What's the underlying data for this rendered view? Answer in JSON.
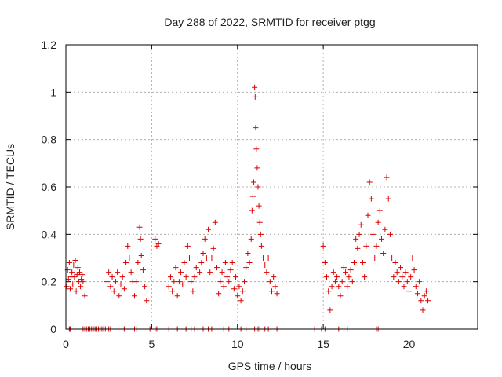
{
  "chart_data": {
    "type": "scatter",
    "title": "Day 288 of 2022, SRMTID for receiver ptgg",
    "xlabel": "GPS time / hours",
    "ylabel": "SRMTID / TECUs",
    "xlim": [
      0,
      24
    ],
    "ylim": [
      0,
      1.2
    ],
    "xticks": [
      0,
      5,
      10,
      15,
      20
    ],
    "xtick_labels": [
      "0",
      "5",
      "10",
      "15",
      "20"
    ],
    "yticks": [
      0,
      0.2,
      0.4,
      0.6,
      0.8,
      1.0,
      1.2
    ],
    "ytick_labels": [
      "0",
      "0.2",
      "0.4",
      "0.6",
      "0.8",
      "1",
      "1.2"
    ],
    "grid": true,
    "legend": "none",
    "marker": "plus",
    "series": [
      {
        "name": "SRMTID",
        "color": "#dd0000",
        "points": [
          [
            0.05,
            0.18
          ],
          [
            0.1,
            0.25
          ],
          [
            0.15,
            0.21
          ],
          [
            0.2,
            0.28
          ],
          [
            0.25,
            0.17
          ],
          [
            0.3,
            0.22
          ],
          [
            0.35,
            0.24
          ],
          [
            0.4,
            0.19
          ],
          [
            0.45,
            0.27
          ],
          [
            0.5,
            0.22
          ],
          [
            0.55,
            0.29
          ],
          [
            0.6,
            0.16
          ],
          [
            0.65,
            0.23
          ],
          [
            0.7,
            0.26
          ],
          [
            0.75,
            0.2
          ],
          [
            0.8,
            0.24
          ],
          [
            0.85,
            0.18
          ],
          [
            0.9,
            0.21
          ],
          [
            0.95,
            0.23
          ],
          [
            1.0,
            0.2
          ],
          [
            1.1,
            0.14
          ],
          [
            2.4,
            0.2
          ],
          [
            2.5,
            0.24
          ],
          [
            2.6,
            0.18
          ],
          [
            2.7,
            0.22
          ],
          [
            2.8,
            0.16
          ],
          [
            2.9,
            0.2
          ],
          [
            3.0,
            0.24
          ],
          [
            3.1,
            0.14
          ],
          [
            3.2,
            0.19
          ],
          [
            3.3,
            0.22
          ],
          [
            3.4,
            0.17
          ],
          [
            3.5,
            0.28
          ],
          [
            3.6,
            0.35
          ],
          [
            3.7,
            0.3
          ],
          [
            3.8,
            0.24
          ],
          [
            3.9,
            0.2
          ],
          [
            4.0,
            0.14
          ],
          [
            4.1,
            0.2
          ],
          [
            4.2,
            0.28
          ],
          [
            4.3,
            0.43
          ],
          [
            4.35,
            0.38
          ],
          [
            4.4,
            0.31
          ],
          [
            4.5,
            0.25
          ],
          [
            4.6,
            0.18
          ],
          [
            4.7,
            0.12
          ],
          [
            5.2,
            0.38
          ],
          [
            5.3,
            0.35
          ],
          [
            5.4,
            0.36
          ],
          [
            6.0,
            0.18
          ],
          [
            6.1,
            0.22
          ],
          [
            6.2,
            0.16
          ],
          [
            6.3,
            0.2
          ],
          [
            6.4,
            0.26
          ],
          [
            6.5,
            0.14
          ],
          [
            6.6,
            0.2
          ],
          [
            6.7,
            0.24
          ],
          [
            6.8,
            0.19
          ],
          [
            6.9,
            0.28
          ],
          [
            7.0,
            0.22
          ],
          [
            7.1,
            0.35
          ],
          [
            7.2,
            0.3
          ],
          [
            7.3,
            0.2
          ],
          [
            7.4,
            0.16
          ],
          [
            7.5,
            0.22
          ],
          [
            7.6,
            0.26
          ],
          [
            7.7,
            0.3
          ],
          [
            7.8,
            0.24
          ],
          [
            7.9,
            0.28
          ],
          [
            8.0,
            0.32
          ],
          [
            8.1,
            0.38
          ],
          [
            8.2,
            0.3
          ],
          [
            8.3,
            0.42
          ],
          [
            8.4,
            0.24
          ],
          [
            8.5,
            0.3
          ],
          [
            8.6,
            0.34
          ],
          [
            8.7,
            0.45
          ],
          [
            8.8,
            0.26
          ],
          [
            8.9,
            0.15
          ],
          [
            9.0,
            0.2
          ],
          [
            9.1,
            0.24
          ],
          [
            9.2,
            0.18
          ],
          [
            9.3,
            0.28
          ],
          [
            9.4,
            0.22
          ],
          [
            9.5,
            0.2
          ],
          [
            9.6,
            0.25
          ],
          [
            9.7,
            0.28
          ],
          [
            9.8,
            0.17
          ],
          [
            9.9,
            0.22
          ],
          [
            10.0,
            0.14
          ],
          [
            10.1,
            0.18
          ],
          [
            10.2,
            0.12
          ],
          [
            10.3,
            0.16
          ],
          [
            10.4,
            0.2
          ],
          [
            10.5,
            0.26
          ],
          [
            10.6,
            0.32
          ],
          [
            10.7,
            0.28
          ],
          [
            10.8,
            0.38
          ],
          [
            10.85,
            0.5
          ],
          [
            10.9,
            0.56
          ],
          [
            10.95,
            0.62
          ],
          [
            11.0,
            1.02
          ],
          [
            11.03,
            0.98
          ],
          [
            11.06,
            0.85
          ],
          [
            11.1,
            0.76
          ],
          [
            11.15,
            0.68
          ],
          [
            11.2,
            0.6
          ],
          [
            11.25,
            0.52
          ],
          [
            11.3,
            0.45
          ],
          [
            11.35,
            0.4
          ],
          [
            11.4,
            0.35
          ],
          [
            11.5,
            0.3
          ],
          [
            11.6,
            0.27
          ],
          [
            11.7,
            0.24
          ],
          [
            11.8,
            0.3
          ],
          [
            11.9,
            0.2
          ],
          [
            12.0,
            0.16
          ],
          [
            12.1,
            0.22
          ],
          [
            12.2,
            0.18
          ],
          [
            12.3,
            0.15
          ],
          [
            15.0,
            0.35
          ],
          [
            15.1,
            0.28
          ],
          [
            15.2,
            0.22
          ],
          [
            15.3,
            0.16
          ],
          [
            15.4,
            0.08
          ],
          [
            15.5,
            0.18
          ],
          [
            15.6,
            0.24
          ],
          [
            15.7,
            0.2
          ],
          [
            15.8,
            0.22
          ],
          [
            15.9,
            0.18
          ],
          [
            16.0,
            0.14
          ],
          [
            16.1,
            0.2
          ],
          [
            16.2,
            0.26
          ],
          [
            16.3,
            0.24
          ],
          [
            16.4,
            0.18
          ],
          [
            16.5,
            0.22
          ],
          [
            16.6,
            0.25
          ],
          [
            16.7,
            0.2
          ],
          [
            16.8,
            0.28
          ],
          [
            16.9,
            0.38
          ],
          [
            17.0,
            0.34
          ],
          [
            17.1,
            0.4
          ],
          [
            17.2,
            0.44
          ],
          [
            17.3,
            0.28
          ],
          [
            17.4,
            0.22
          ],
          [
            17.5,
            0.35
          ],
          [
            17.6,
            0.48
          ],
          [
            17.7,
            0.62
          ],
          [
            17.8,
            0.55
          ],
          [
            17.9,
            0.4
          ],
          [
            18.0,
            0.3
          ],
          [
            18.1,
            0.35
          ],
          [
            18.2,
            0.45
          ],
          [
            18.3,
            0.5
          ],
          [
            18.4,
            0.38
          ],
          [
            18.5,
            0.32
          ],
          [
            18.6,
            0.42
          ],
          [
            18.7,
            0.64
          ],
          [
            18.8,
            0.55
          ],
          [
            18.9,
            0.4
          ],
          [
            19.0,
            0.3
          ],
          [
            19.1,
            0.22
          ],
          [
            19.2,
            0.28
          ],
          [
            19.3,
            0.24
          ],
          [
            19.4,
            0.2
          ],
          [
            19.5,
            0.26
          ],
          [
            19.6,
            0.22
          ],
          [
            19.7,
            0.18
          ],
          [
            19.8,
            0.24
          ],
          [
            19.9,
            0.2
          ],
          [
            20.0,
            0.16
          ],
          [
            20.1,
            0.22
          ],
          [
            20.2,
            0.3
          ],
          [
            20.3,
            0.25
          ],
          [
            20.4,
            0.18
          ],
          [
            20.5,
            0.15
          ],
          [
            20.6,
            0.2
          ],
          [
            20.7,
            0.12
          ],
          [
            20.8,
            0.08
          ],
          [
            20.9,
            0.14
          ],
          [
            21.0,
            0.16
          ],
          [
            21.1,
            0.12
          ]
        ],
        "zero_points": [
          0.2,
          0.25,
          1.0,
          1.1,
          1.2,
          1.3,
          1.4,
          1.5,
          1.6,
          1.7,
          1.8,
          1.9,
          2.0,
          2.1,
          2.2,
          2.3,
          2.4,
          2.5,
          2.6,
          3.4,
          4.0,
          4.1,
          4.9,
          5.2,
          5.3,
          6.0,
          6.5,
          7.0,
          7.3,
          7.5,
          7.7,
          8.0,
          8.3,
          8.5,
          9.2,
          9.5,
          10.2,
          10.5,
          11.0,
          11.2,
          11.3,
          11.6,
          11.8,
          12.3,
          14.5,
          14.9,
          15.1,
          15.9,
          16.4,
          18.1,
          18.2,
          20.0
        ]
      }
    ]
  }
}
